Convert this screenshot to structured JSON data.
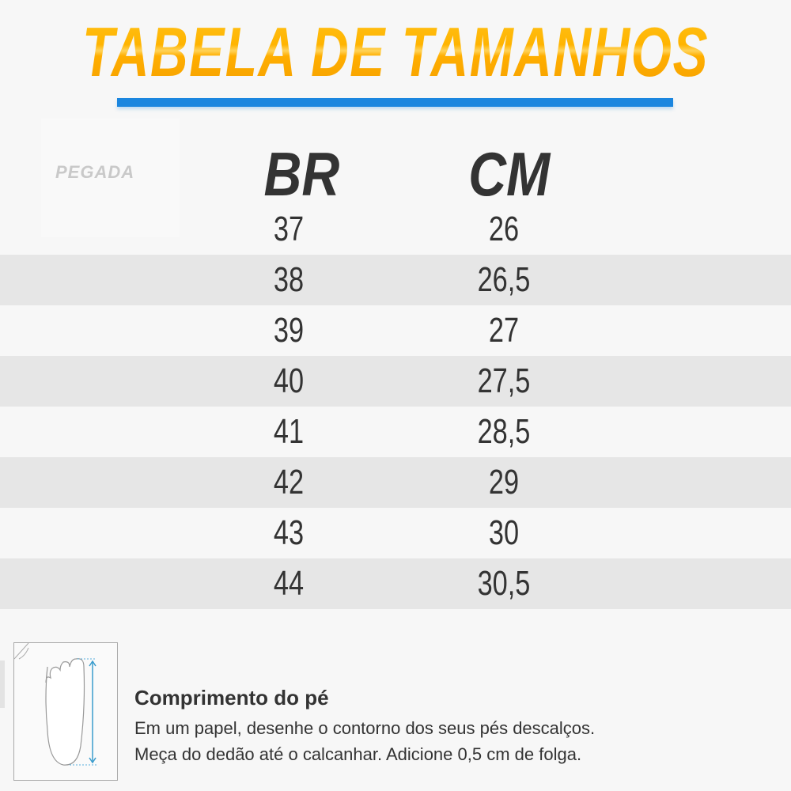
{
  "title": "TABELA DE TAMANHOS",
  "brand_logo": "PEGADA",
  "table": {
    "headers": [
      "BR",
      "CM"
    ],
    "rows": [
      [
        "37",
        "26"
      ],
      [
        "38",
        "26,5"
      ],
      [
        "39",
        "27"
      ],
      [
        "40",
        "27,5"
      ],
      [
        "41",
        "28,5"
      ],
      [
        "42",
        "29"
      ],
      [
        "43",
        "30"
      ],
      [
        "44",
        "30,5"
      ]
    ]
  },
  "instructions": {
    "heading": "Comprimento do pé",
    "line1": "Em um papel, desenhe o contorno dos seus pés descalços.",
    "line2": "Meça do dedão até o calcanhar. Adicione 0,5 cm de folga."
  },
  "colors": {
    "title": "#ffb400",
    "accent_bar": "#1b86df",
    "text": "#333333",
    "stripe": "#e6e6e6"
  }
}
